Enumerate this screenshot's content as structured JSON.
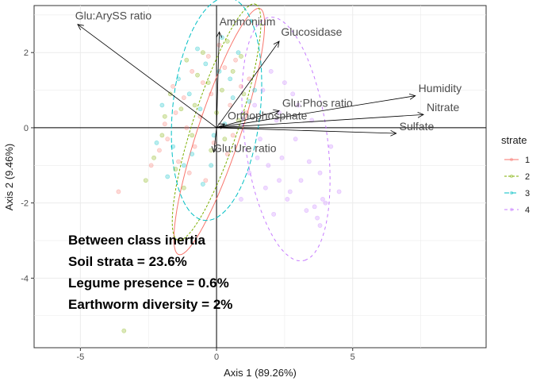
{
  "chart_data": {
    "type": "scatter",
    "xlabel": "Axis 1 (89.26%)",
    "ylabel": "Axis 2 (9.46%)",
    "xlim": [
      -6.7,
      9.9
    ],
    "ylim": [
      -5.85,
      3.25
    ],
    "x_ticks": [
      -5,
      0,
      5
    ],
    "y_ticks": [
      -4,
      -2,
      0,
      2
    ],
    "grid": true,
    "legend": {
      "title": "strate",
      "placement": "right",
      "entries": [
        {
          "label": "1",
          "color": "#F8766D",
          "dash": "none"
        },
        {
          "label": "2",
          "color": "#7CAE00",
          "dash": "3,2"
        },
        {
          "label": "3",
          "color": "#00BFC4",
          "dash": "6,3"
        },
        {
          "label": "4",
          "color": "#C77CFF",
          "dash": "4,4"
        }
      ]
    },
    "vectors": [
      {
        "label": "Glu:ArySS ratio",
        "x": -5.1,
        "y": 2.75
      },
      {
        "label": "Ammonium",
        "x": 0.1,
        "y": 2.55
      },
      {
        "label": "Glucosidase",
        "x": 2.3,
        "y": 2.3
      },
      {
        "label": "Humidity",
        "x": 7.3,
        "y": 0.85
      },
      {
        "label": "Nitrate",
        "x": 7.6,
        "y": 0.35
      },
      {
        "label": "Glu:Phos ratio",
        "x": 2.3,
        "y": 0.45
      },
      {
        "label": "Orthophosphate",
        "x": 0.3,
        "y": 0.1
      },
      {
        "label": "Sulfate",
        "x": 6.6,
        "y": -0.15
      },
      {
        "label": "Glu:Ure ratio",
        "x": -0.1,
        "y": -0.65
      }
    ],
    "ellipses": [
      {
        "strate": "1",
        "cx": 0.1,
        "cy": -0.1,
        "rx": 3.6,
        "ry": 0.75,
        "angle_deg": 65
      },
      {
        "strate": "2",
        "cx": 0.0,
        "cy": 0.15,
        "rx": 3.45,
        "ry": 0.8,
        "angle_deg": 65
      },
      {
        "strate": "3",
        "cx": 0.0,
        "cy": 0.5,
        "rx": 3.0,
        "ry": 1.6,
        "angle_deg": 80
      },
      {
        "strate": "4",
        "cx": 2.55,
        "cy": -0.3,
        "rx": 3.3,
        "ry": 1.5,
        "angle_deg": -78
      }
    ],
    "points": {
      "1": [
        [
          -1.8,
          -0.3
        ],
        [
          -1.2,
          0.8
        ],
        [
          -0.5,
          1.2
        ],
        [
          0.3,
          1.6
        ],
        [
          -0.8,
          -0.5
        ],
        [
          -1.5,
          0.4
        ],
        [
          0.5,
          0.6
        ],
        [
          -0.3,
          1.9
        ],
        [
          -1.0,
          -1.2
        ],
        [
          0.6,
          -0.2
        ],
        [
          -2.1,
          -0.6
        ],
        [
          -0.2,
          0.9
        ],
        [
          0.9,
          1.1
        ],
        [
          -1.4,
          -0.9
        ],
        [
          -3.6,
          -1.7
        ],
        [
          0.1,
          2.2
        ],
        [
          -0.6,
          0.3
        ],
        [
          1.1,
          0.4
        ],
        [
          -1.9,
          0.1
        ],
        [
          0.4,
          -0.7
        ],
        [
          -0.9,
          1.5
        ],
        [
          -0.1,
          -0.4
        ],
        [
          0.7,
          1.8
        ],
        [
          -2.4,
          -1.0
        ],
        [
          -1.1,
          0.0
        ],
        [
          -0.4,
          -1.4
        ],
        [
          1.2,
          1.3
        ],
        [
          -1.6,
          1.1
        ]
      ],
      "2": [
        [
          -1.3,
          0.5
        ],
        [
          -0.7,
          1.4
        ],
        [
          0.2,
          1.0
        ],
        [
          -2.0,
          -0.2
        ],
        [
          -1.5,
          -1.1
        ],
        [
          0.4,
          2.3
        ],
        [
          -0.2,
          -0.6
        ],
        [
          0.8,
          0.2
        ],
        [
          -1.1,
          1.8
        ],
        [
          -2.3,
          -0.8
        ],
        [
          0.0,
          0.4
        ],
        [
          -0.9,
          -0.2
        ],
        [
          0.6,
          1.5
        ],
        [
          -1.7,
          0.9
        ],
        [
          -3.4,
          -5.4
        ],
        [
          -0.5,
          2.0
        ],
        [
          1.0,
          0.9
        ],
        [
          -2.6,
          -1.4
        ],
        [
          -0.3,
          1.2
        ],
        [
          0.3,
          -0.3
        ],
        [
          -1.2,
          -1.6
        ],
        [
          -0.8,
          0.6
        ],
        [
          0.9,
          1.9
        ],
        [
          -1.9,
          0.3
        ]
      ],
      "3": [
        [
          -1.0,
          0.9
        ],
        [
          -0.4,
          1.7
        ],
        [
          0.5,
          1.3
        ],
        [
          -1.6,
          -0.5
        ],
        [
          -1.2,
          -1.0
        ],
        [
          0.2,
          2.4
        ],
        [
          -0.1,
          -0.2
        ],
        [
          1.2,
          0.7
        ],
        [
          -0.7,
          2.1
        ],
        [
          -2.2,
          -0.4
        ],
        [
          0.3,
          0.1
        ],
        [
          -0.6,
          0.5
        ],
        [
          0.8,
          2.0
        ],
        [
          -1.4,
          1.3
        ],
        [
          -0.2,
          -1.0
        ],
        [
          -0.9,
          -0.7
        ],
        [
          0.6,
          0.8
        ],
        [
          -1.8,
          -1.3
        ],
        [
          -2.0,
          0.6
        ],
        [
          0.1,
          1.5
        ],
        [
          1.4,
          1.0
        ],
        [
          -0.5,
          -1.5
        ]
      ],
      "4": [
        [
          2.0,
          1.5
        ],
        [
          2.8,
          0.9
        ],
        [
          3.5,
          0.2
        ],
        [
          1.6,
          -0.3
        ],
        [
          2.4,
          -0.8
        ],
        [
          3.1,
          -1.4
        ],
        [
          1.9,
          -1.0
        ],
        [
          2.7,
          -1.7
        ],
        [
          3.6,
          -2.1
        ],
        [
          1.4,
          0.6
        ],
        [
          2.2,
          0.2
        ],
        [
          4.2,
          -0.5
        ],
        [
          3.8,
          -1.2
        ],
        [
          2.5,
          1.2
        ],
        [
          1.8,
          -1.6
        ],
        [
          2.9,
          -0.3
        ],
        [
          3.3,
          -2.2
        ],
        [
          1.5,
          -0.8
        ],
        [
          3.9,
          -1.9
        ],
        [
          2.1,
          -2.3
        ],
        [
          0.9,
          -1.9
        ],
        [
          4.5,
          -1.7
        ],
        [
          3.7,
          -2.4
        ],
        [
          2.6,
          -1.9
        ],
        [
          1.2,
          -1.2
        ],
        [
          3.0,
          0.6
        ],
        [
          1.7,
          1.0
        ],
        [
          2.3,
          -1.4
        ],
        [
          3.4,
          -0.9
        ],
        [
          4.0,
          -2.0
        ],
        [
          3.8,
          -2.6
        ],
        [
          2.3,
          0.4
        ]
      ]
    },
    "annotations": [
      "Between class inertia",
      "Soil strata = 23.6%",
      "Legume presence = 0.6%",
      "Earthworm diversity = 2%"
    ]
  }
}
